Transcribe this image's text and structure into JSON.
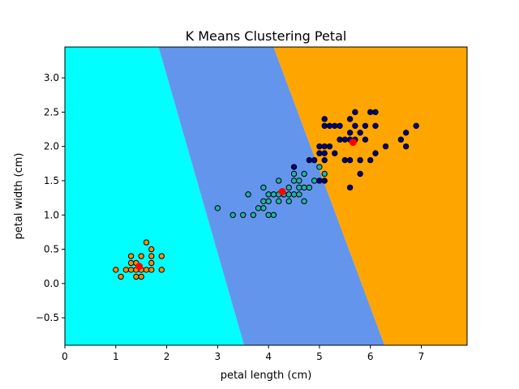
{
  "chart_data": {
    "type": "scatter",
    "title": "K Means Clustering Petal",
    "xlabel": "petal length (cm)",
    "ylabel": "petal width (cm)",
    "xlim": [
      0,
      7.9
    ],
    "ylim": [
      -0.9,
      3.45
    ],
    "xticks": [
      0,
      1,
      2,
      3,
      4,
      5,
      6,
      7
    ],
    "xtick_labels": [
      "0",
      "1",
      "2",
      "3",
      "4",
      "5",
      "6",
      "7"
    ],
    "yticks": [
      -0.5,
      0.0,
      0.5,
      1.0,
      1.5,
      2.0,
      2.5,
      3.0
    ],
    "ytick_labels": [
      "−0.5",
      "0.0",
      "0.5",
      "1.0",
      "1.5",
      "2.0",
      "2.5",
      "3.0"
    ],
    "grid": false,
    "legend": "none",
    "decision_regions": [
      {
        "color": "#00ffff",
        "boundary_bottom_x": 3.52,
        "boundary_top_x": 1.84
      },
      {
        "color": "#6495ed",
        "boundary_bottom_x": 6.28,
        "boundary_top_x": 4.1
      },
      {
        "color": "#ffa500"
      }
    ],
    "series": [
      {
        "color": "#ff8c00",
        "points": [
          [
            1.0,
            0.2
          ],
          [
            1.1,
            0.1
          ],
          [
            1.2,
            0.2
          ],
          [
            1.3,
            0.2
          ],
          [
            1.3,
            0.3
          ],
          [
            1.3,
            0.4
          ],
          [
            1.4,
            0.1
          ],
          [
            1.4,
            0.2
          ],
          [
            1.4,
            0.3
          ],
          [
            1.5,
            0.1
          ],
          [
            1.5,
            0.2
          ],
          [
            1.5,
            0.4
          ],
          [
            1.6,
            0.2
          ],
          [
            1.6,
            0.6
          ],
          [
            1.7,
            0.2
          ],
          [
            1.7,
            0.3
          ],
          [
            1.7,
            0.4
          ],
          [
            1.7,
            0.5
          ],
          [
            1.9,
            0.2
          ],
          [
            1.9,
            0.4
          ]
        ]
      },
      {
        "color": "#20b2aa",
        "points": [
          [
            3.0,
            1.1
          ],
          [
            3.3,
            1.0
          ],
          [
            3.5,
            1.0
          ],
          [
            3.6,
            1.3
          ],
          [
            3.7,
            1.0
          ],
          [
            3.8,
            1.1
          ],
          [
            3.9,
            1.1
          ],
          [
            3.9,
            1.2
          ],
          [
            3.9,
            1.4
          ],
          [
            4.0,
            1.0
          ],
          [
            4.0,
            1.2
          ],
          [
            4.0,
            1.3
          ],
          [
            4.1,
            1.0
          ],
          [
            4.1,
            1.3
          ],
          [
            4.2,
            1.2
          ],
          [
            4.2,
            1.3
          ],
          [
            4.2,
            1.5
          ],
          [
            4.3,
            1.3
          ],
          [
            4.4,
            1.2
          ],
          [
            4.4,
            1.3
          ],
          [
            4.4,
            1.4
          ],
          [
            4.5,
            1.3
          ],
          [
            4.5,
            1.5
          ],
          [
            4.5,
            1.6
          ],
          [
            4.6,
            1.3
          ],
          [
            4.6,
            1.4
          ],
          [
            4.6,
            1.5
          ],
          [
            4.7,
            1.2
          ],
          [
            4.7,
            1.4
          ],
          [
            4.7,
            1.6
          ],
          [
            4.8,
            1.4
          ],
          [
            4.9,
            1.5
          ],
          [
            5.0,
            1.7
          ],
          [
            5.1,
            1.6
          ]
        ]
      },
      {
        "color": "#000080",
        "points": [
          [
            4.5,
            1.7
          ],
          [
            4.8,
            1.8
          ],
          [
            4.9,
            1.8
          ],
          [
            5.0,
            1.5
          ],
          [
            5.0,
            1.9
          ],
          [
            5.0,
            2.0
          ],
          [
            5.1,
            1.5
          ],
          [
            5.1,
            1.8
          ],
          [
            5.1,
            1.9
          ],
          [
            5.1,
            2.0
          ],
          [
            5.1,
            2.3
          ],
          [
            5.1,
            2.4
          ],
          [
            5.2,
            2.0
          ],
          [
            5.2,
            2.3
          ],
          [
            5.3,
            1.9
          ],
          [
            5.3,
            2.3
          ],
          [
            5.4,
            2.1
          ],
          [
            5.4,
            2.3
          ],
          [
            5.5,
            1.8
          ],
          [
            5.5,
            2.1
          ],
          [
            5.6,
            1.4
          ],
          [
            5.6,
            1.8
          ],
          [
            5.6,
            2.1
          ],
          [
            5.6,
            2.2
          ],
          [
            5.6,
            2.4
          ],
          [
            5.7,
            2.1
          ],
          [
            5.7,
            2.3
          ],
          [
            5.7,
            2.5
          ],
          [
            5.8,
            1.6
          ],
          [
            5.8,
            1.8
          ],
          [
            5.8,
            2.2
          ],
          [
            5.9,
            2.1
          ],
          [
            5.9,
            2.3
          ],
          [
            6.0,
            1.8
          ],
          [
            6.0,
            2.5
          ],
          [
            6.1,
            1.9
          ],
          [
            6.1,
            2.3
          ],
          [
            6.1,
            2.5
          ],
          [
            6.3,
            2.0
          ],
          [
            6.6,
            2.1
          ],
          [
            6.7,
            2.0
          ],
          [
            6.7,
            2.2
          ],
          [
            6.9,
            2.3
          ]
        ]
      }
    ],
    "centroids": {
      "color": "#ff0000",
      "points": [
        [
          1.46,
          0.25
        ],
        [
          4.27,
          1.34
        ],
        [
          5.66,
          2.06
        ]
      ]
    }
  }
}
